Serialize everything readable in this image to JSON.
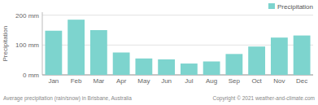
{
  "chart_data": {
    "type": "bar",
    "categories": [
      "Jan",
      "Feb",
      "Mar",
      "Apr",
      "May",
      "Jun",
      "Jul",
      "Aug",
      "Sep",
      "Oct",
      "Nov",
      "Dec"
    ],
    "series": [
      {
        "name": "Precipitation",
        "color": "#7dd4ce",
        "values": [
          148,
          185,
          150,
          75,
          55,
          52,
          38,
          45,
          70,
          95,
          125,
          132
        ]
      }
    ],
    "ylabel": "Precipitation",
    "annotations": [
      "Average precipitation (rain/snow) in Brisbane, Australia",
      "Copyright © 2021  weather-and-climate.com"
    ],
    "ylim": [
      0,
      210
    ],
    "yticks": [
      {
        "value": 0,
        "label": "0 mm"
      },
      {
        "value": 100,
        "label": "100 mm"
      },
      {
        "value": 200,
        "label": "200 mm"
      }
    ],
    "grid": true,
    "legend": "upper right"
  }
}
